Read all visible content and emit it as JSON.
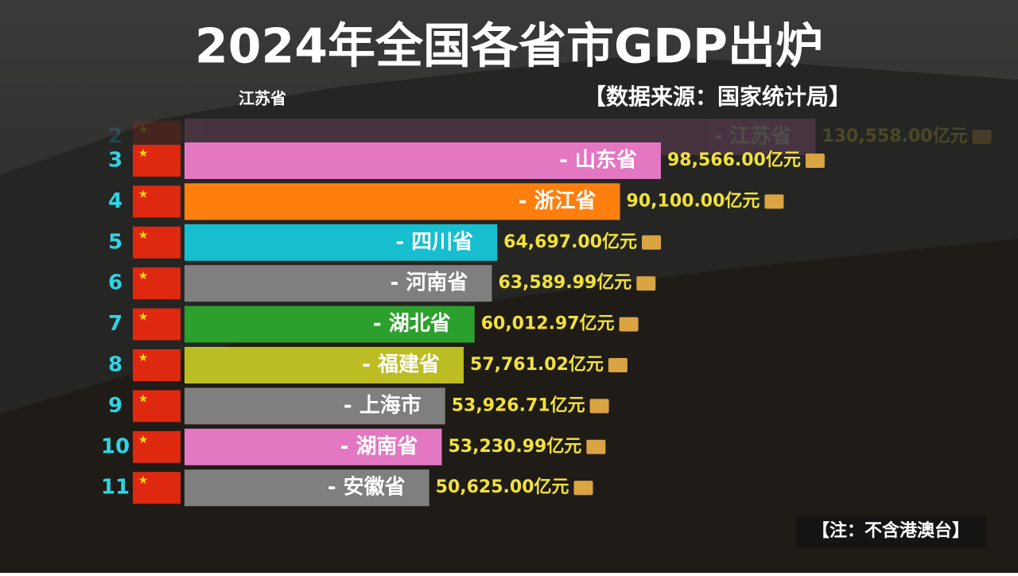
{
  "chart_data": {
    "type": "bar",
    "title": "2024年全国各省市GDP出炉",
    "subtitle": "江苏省",
    "source": "【数据来源：国家统计局】",
    "note": "【注：不含港澳台】",
    "ranks": [
      2,
      3,
      4,
      5,
      6,
      7,
      8,
      9,
      10,
      11
    ],
    "categories": [
      "- 江苏省",
      "- 山东省",
      "- 浙江省",
      "- 四川省",
      "- 河南省",
      "- 湖北省",
      "- 福建省",
      "- 上海市",
      "- 湖南省",
      "- 安徽省"
    ],
    "values": [
      130558.0,
      98566.0,
      90100.0,
      64697.0,
      63589.99,
      60012.97,
      57761.02,
      53926.71,
      53230.99,
      50625.0
    ],
    "value_labels": [
      "130,558.00亿元",
      "98,566.00亿元",
      "90,100.00亿元",
      "64,697.00亿元",
      "63,589.99亿元",
      "60,012.97亿元",
      "57,761.02亿元",
      "53,926.71亿元",
      "53,230.99亿元",
      "50,625.00亿元"
    ],
    "colors": [
      "#e377c2",
      "#e377c2",
      "#ff7f0e",
      "#17becf",
      "#7f7f7f",
      "#2ca02c",
      "#bcbd22",
      "#7f7f7f",
      "#e377c2",
      "#7f7f7f"
    ]
  }
}
